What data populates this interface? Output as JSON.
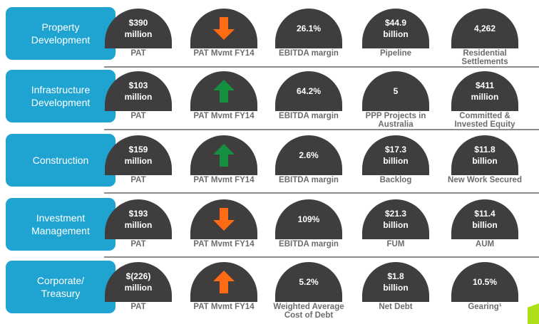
{
  "colors": {
    "segment_bg": "#1fa3d1",
    "dome": "#3f3d3d",
    "label": "#6d6d6d",
    "arrow_up": "#149040",
    "arrow_down": "#ff6a14",
    "accent": "#aee017"
  },
  "rows": [
    {
      "segment": "Property\nDevelopment",
      "metrics": [
        {
          "value": "$390\nmillion",
          "label": "PAT"
        },
        {
          "arrow": "down",
          "arrow_color": "#ff6a14",
          "label": "PAT Mvmt FY14"
        },
        {
          "value": "26.1%",
          "label": "EBITDA margin"
        },
        {
          "value": "$44.9\nbillion",
          "label": "Pipeline"
        },
        {
          "value": "4,262",
          "label": "Residential Settlements"
        }
      ]
    },
    {
      "segment": "Infrastructure\nDevelopment",
      "metrics": [
        {
          "value": "$103\nmillion",
          "label": "PAT"
        },
        {
          "arrow": "up",
          "arrow_color": "#149040",
          "label": "PAT Mvmt FY14"
        },
        {
          "value": "64.2%",
          "label": "EBITDA margin"
        },
        {
          "value": "5",
          "label": "PPP Projects in\nAustralia"
        },
        {
          "value": "$411\nmillion",
          "label": "Committed &\nInvested Equity"
        }
      ]
    },
    {
      "segment": "Construction",
      "metrics": [
        {
          "value": "$159\nmillion",
          "label": "PAT"
        },
        {
          "arrow": "up",
          "arrow_color": "#149040",
          "label": "PAT Mvmt FY14"
        },
        {
          "value": "2.6%",
          "label": "EBITDA margin"
        },
        {
          "value": "$17.3\nbillion",
          "label": "Backlog"
        },
        {
          "value": "$11.8\nbillion",
          "label": "New Work Secured"
        }
      ]
    },
    {
      "segment": "Investment\nManagement",
      "metrics": [
        {
          "value": "$193\nmillion",
          "label": "PAT"
        },
        {
          "arrow": "down",
          "arrow_color": "#ff6a14",
          "label": "PAT Mvmt FY14"
        },
        {
          "value": "109%",
          "label": "EBITDA margin"
        },
        {
          "value": "$21.3\nbillion",
          "label": "FUM"
        },
        {
          "value": "$11.4\nbillion",
          "label": "AUM"
        }
      ]
    },
    {
      "segment": "Corporate/\nTreasury",
      "metrics": [
        {
          "value": "$(226)\nmillion",
          "label": "PAT"
        },
        {
          "arrow": "up",
          "arrow_color": "#ff6a14",
          "label": "PAT Mvmt FY14"
        },
        {
          "value": "5.2%",
          "label": "Weighted Average\nCost of Debt"
        },
        {
          "value": "$1.8\nbillion",
          "label": "Net Debt"
        },
        {
          "value": "10.5%",
          "label": "Gearing¹"
        }
      ]
    }
  ]
}
